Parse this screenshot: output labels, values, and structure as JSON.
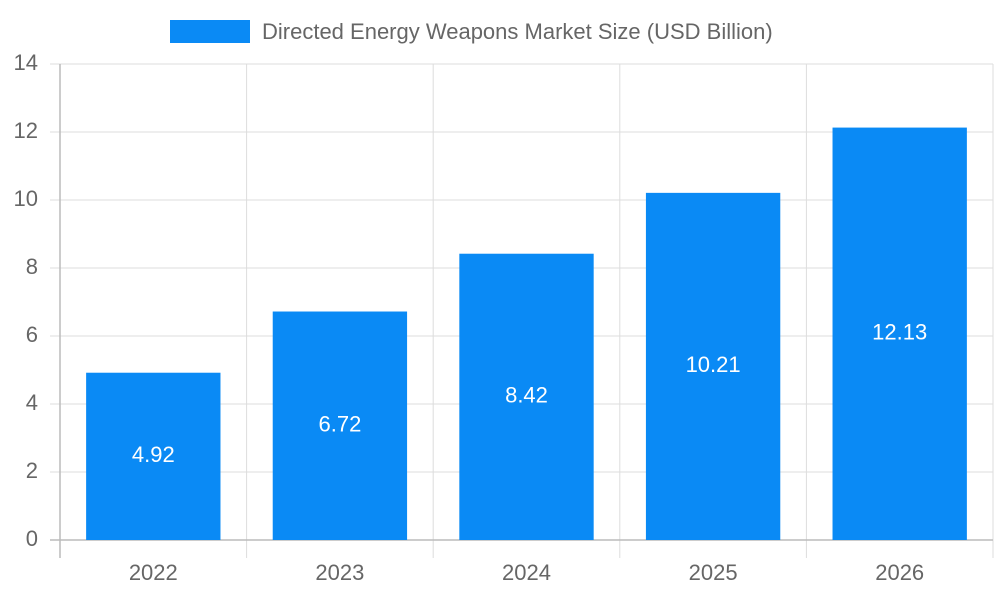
{
  "chart_data": {
    "type": "bar",
    "categories": [
      "2022",
      "2023",
      "2024",
      "2025",
      "2026"
    ],
    "series": [
      {
        "name": "Directed Energy Weapons Market Size (USD Billion)",
        "color": "#0a8af5",
        "values": [
          4.92,
          6.72,
          8.42,
          10.21,
          12.13
        ]
      }
    ],
    "ylim": [
      0,
      14
    ],
    "yticks": [
      0,
      2,
      4,
      6,
      8,
      10,
      12,
      14
    ],
    "grid": true,
    "legend": "top"
  }
}
